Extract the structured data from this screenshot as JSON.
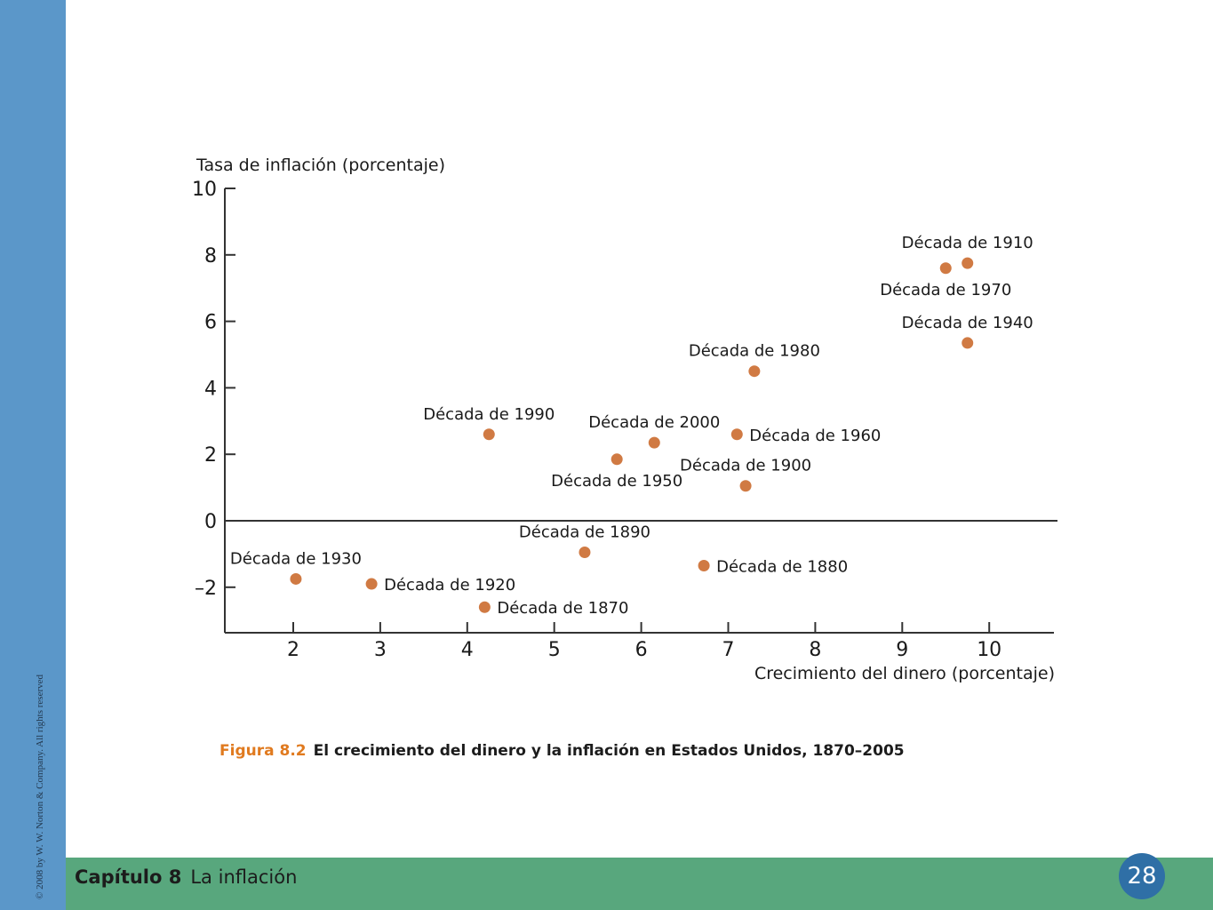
{
  "sidebar": {
    "copyright": "© 2008 by W. W. Norton & Company. All rights reserved"
  },
  "footer": {
    "chapter": "Capítulo 8",
    "title": "La inflación",
    "page": "28"
  },
  "caption": {
    "figure": "Figura 8.2",
    "text": "El crecimiento del dinero y la inflación en Estados Unidos, 1870–2005"
  },
  "colors": {
    "sidebar": "#5b97c9",
    "footer": "#58a77d",
    "points": "#d07a43",
    "caption_accent": "#e07a1f",
    "page_badge": "#2f6fa6"
  },
  "chart_data": {
    "type": "scatter",
    "ylabel": "Tasa de inflación (porcentaje)",
    "xlabel": "Crecimiento del dinero (porcentaje)",
    "xlim": [
      1.3,
      10.7
    ],
    "ylim": [
      -3.4,
      10
    ],
    "xticks": [
      "2",
      "3",
      "4",
      "5",
      "6",
      "7",
      "8",
      "9",
      "10"
    ],
    "yticks": [
      "10",
      "8",
      "6",
      "4",
      "2",
      "0",
      "–2"
    ],
    "points": [
      {
        "label": "Década de 1910",
        "x": 9.75,
        "y": 7.75,
        "pos": "above"
      },
      {
        "label": "Década de 1970",
        "x": 9.5,
        "y": 7.6,
        "pos": "below"
      },
      {
        "label": "Década de 1940",
        "x": 9.75,
        "y": 5.35,
        "pos": "above"
      },
      {
        "label": "Década de 1980",
        "x": 7.3,
        "y": 4.5,
        "pos": "above"
      },
      {
        "label": "Década de 1990",
        "x": 4.25,
        "y": 2.6,
        "pos": "above"
      },
      {
        "label": "Década de 2000",
        "x": 6.15,
        "y": 2.35,
        "pos": "above"
      },
      {
        "label": "Década de 1960",
        "x": 7.1,
        "y": 2.6,
        "pos": "right"
      },
      {
        "label": "Década de 1950",
        "x": 5.72,
        "y": 1.85,
        "pos": "below"
      },
      {
        "label": "Década de 1900",
        "x": 7.2,
        "y": 1.05,
        "pos": "above"
      },
      {
        "label": "Década de 1890",
        "x": 5.35,
        "y": -0.95,
        "pos": "above"
      },
      {
        "label": "Década de 1880",
        "x": 6.72,
        "y": -1.35,
        "pos": "right"
      },
      {
        "label": "Década de 1930",
        "x": 2.03,
        "y": -1.75,
        "pos": "above"
      },
      {
        "label": "Década de 1920",
        "x": 2.9,
        "y": -1.9,
        "pos": "right"
      },
      {
        "label": "Década de 1870",
        "x": 4.2,
        "y": -2.6,
        "pos": "right"
      }
    ]
  }
}
